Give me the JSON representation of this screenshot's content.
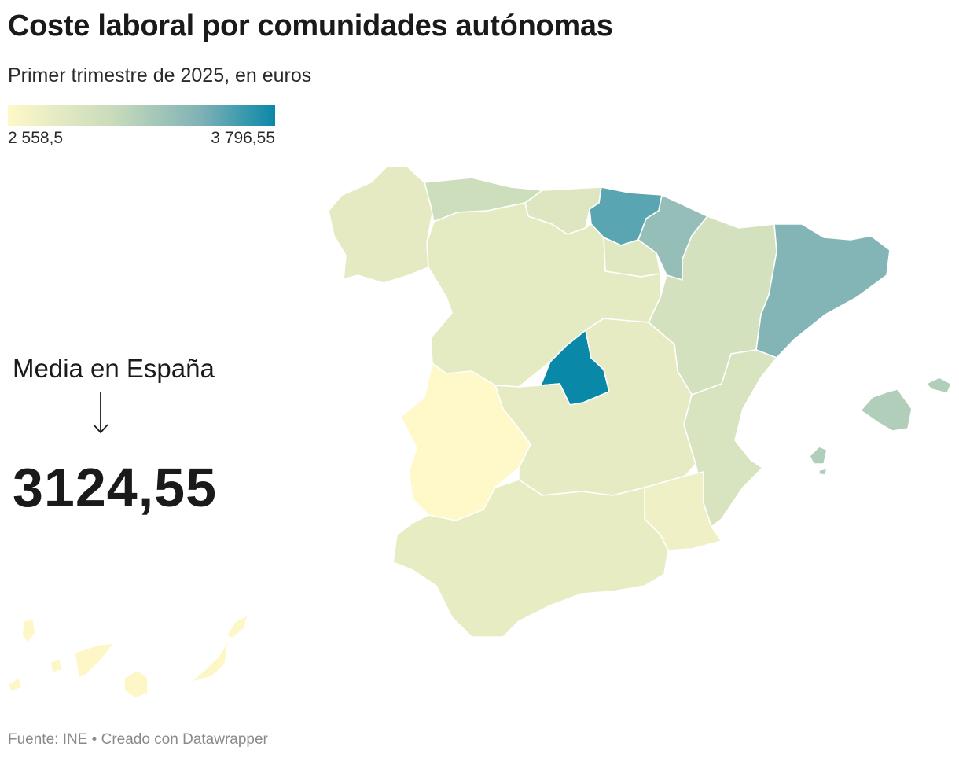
{
  "title": "Coste laboral por comunidades autónomas",
  "subtitle": "Primer trimestre de 2025, en euros",
  "legend": {
    "min_label": "2 558,5",
    "max_label": "3 796,55",
    "min_value": 2558.5,
    "max_value": 3796.55,
    "color_min": "#fff8c9",
    "color_max": "#0a88a8"
  },
  "annotation": {
    "label": "Media en España",
    "value": "3124,55"
  },
  "source": "Fuente: INE • Creado con Datawrapper",
  "regions": {
    "galicia": {
      "name": "Galicia",
      "value": 2790
    },
    "asturias": {
      "name": "Asturias",
      "value": 3010
    },
    "cantabria": {
      "name": "Cantabria",
      "value": 2860
    },
    "pais_vasco": {
      "name": "País Vasco",
      "value": 3560
    },
    "navarra": {
      "name": "Navarra",
      "value": 3330
    },
    "la_rioja": {
      "name": "La Rioja",
      "value": 2840
    },
    "aragon": {
      "name": "Aragón",
      "value": 2950
    },
    "cataluna": {
      "name": "Cataluña",
      "value": 3420
    },
    "castilla_leon": {
      "name": "Castilla y León",
      "value": 2800
    },
    "madrid": {
      "name": "Madrid",
      "value": 3796.55
    },
    "castilla_la_mancha": {
      "name": "Castilla-La Mancha",
      "value": 2780
    },
    "extremadura": {
      "name": "Extremadura",
      "value": 2558.5
    },
    "valencia": {
      "name": "Comunidad Valenciana",
      "value": 2900
    },
    "murcia": {
      "name": "Región de Murcia",
      "value": 2700
    },
    "andalucia": {
      "name": "Andalucía",
      "value": 2760
    },
    "baleares": {
      "name": "Illes Balears",
      "value": 3180
    },
    "canarias": {
      "name": "Canarias",
      "value": 2580
    }
  }
}
